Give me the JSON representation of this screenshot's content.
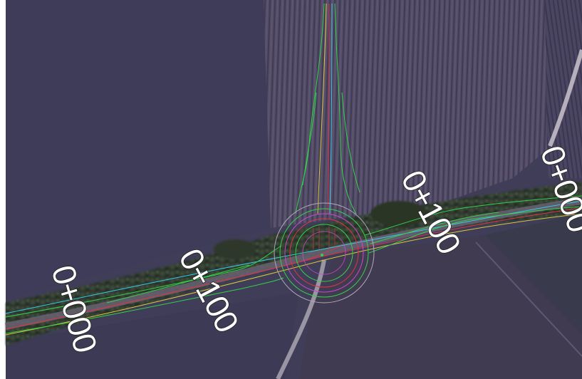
{
  "map": {
    "view": "aerial-satellite",
    "features": [
      "fields",
      "tree-line",
      "rural-road",
      "roundabout-design",
      "alignment-axes"
    ],
    "colors": {
      "field_dark": "#3c3b58",
      "field_plowed": "#524c66",
      "vegetation": "#2f3a2c",
      "road_asphalt": "#8a8690",
      "design_green": "#35d04a",
      "design_red": "#e0334a",
      "design_cyan": "#38c8e8",
      "design_yellow": "#d9c83a",
      "design_magenta": "#c64bc8",
      "design_grey": "#b0aab6"
    }
  },
  "chainage_labels": {
    "west_start": "0+000",
    "west_100": "0+100",
    "east_100": "0+100",
    "east_start": "0+000"
  }
}
